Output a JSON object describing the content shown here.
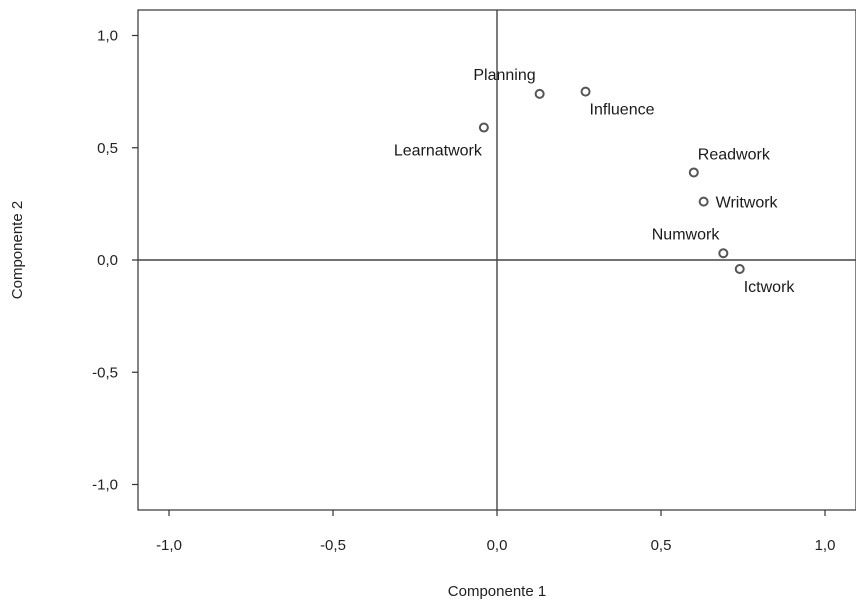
{
  "chart_data": {
    "type": "scatter",
    "xlabel": "Componente 1",
    "ylabel": "Componente 2",
    "xlim": [
      -1.1,
      1.1
    ],
    "ylim": [
      -1.1,
      1.1
    ],
    "xticks": [
      -1.0,
      -0.5,
      0.0,
      0.5,
      1.0
    ],
    "xtick_labels": [
      "-1,0",
      "-0,5",
      "0,0",
      "0,5",
      "1,0"
    ],
    "yticks": [
      -1.0,
      -0.5,
      0.0,
      0.5,
      1.0
    ],
    "ytick_labels": [
      "-1,0",
      "-0,5",
      "0,0",
      "0,5",
      "1,0"
    ],
    "grid": false,
    "reference_lines": {
      "x": 0,
      "y": 0
    },
    "points": [
      {
        "label": "Planning",
        "x": 0.13,
        "y": 0.74,
        "label_side": "top-left"
      },
      {
        "label": "Influence",
        "x": 0.27,
        "y": 0.75,
        "label_side": "bottom-right"
      },
      {
        "label": "Learnatwork",
        "x": -0.04,
        "y": 0.59,
        "label_side": "bottom-left"
      },
      {
        "label": "Readwork",
        "x": 0.6,
        "y": 0.39,
        "label_side": "top-right"
      },
      {
        "label": "Writwork",
        "x": 0.63,
        "y": 0.26,
        "label_side": "right"
      },
      {
        "label": "Numwork",
        "x": 0.69,
        "y": 0.03,
        "label_side": "top-left"
      },
      {
        "label": "Ictwork",
        "x": 0.74,
        "y": -0.04,
        "label_side": "bottom-right"
      }
    ],
    "colors": {
      "marker_stroke": "#555555",
      "marker_fill": "#ffffff",
      "axis": "#444444",
      "frame": "#333333"
    }
  }
}
